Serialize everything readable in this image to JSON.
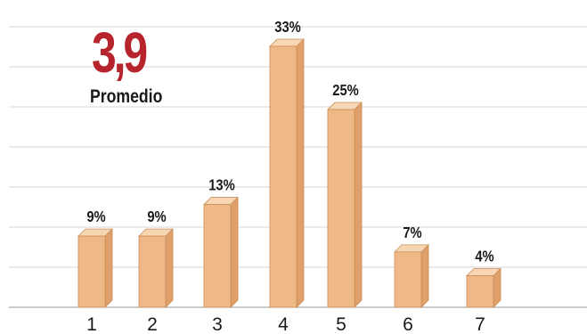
{
  "summary": {
    "value": "3,9",
    "label": "Promedio"
  },
  "chart_data": {
    "type": "bar",
    "categories": [
      "1",
      "2",
      "3",
      "4",
      "5",
      "6",
      "7"
    ],
    "values": [
      9,
      9,
      13,
      33,
      25,
      7,
      4
    ],
    "value_labels": [
      "9%",
      "9%",
      "13%",
      "33%",
      "25%",
      "7%",
      "4%"
    ],
    "title": "",
    "xlabel": "",
    "ylabel": "",
    "ylim": [
      0,
      40
    ],
    "grid": true,
    "legend": "none",
    "colors": {
      "bar_front": "#efb987",
      "bar_top": "#f7d6b3",
      "bar_side": "#dfa06a",
      "bar_edge": "#c98d57",
      "grid": "#d4d4d4",
      "plot_background": "#ffffff",
      "baseline": "#9a9a9a",
      "value_text": "#1a1a1a",
      "tick_text": "#1a1a1a",
      "summary_value": "#b8242b"
    }
  }
}
